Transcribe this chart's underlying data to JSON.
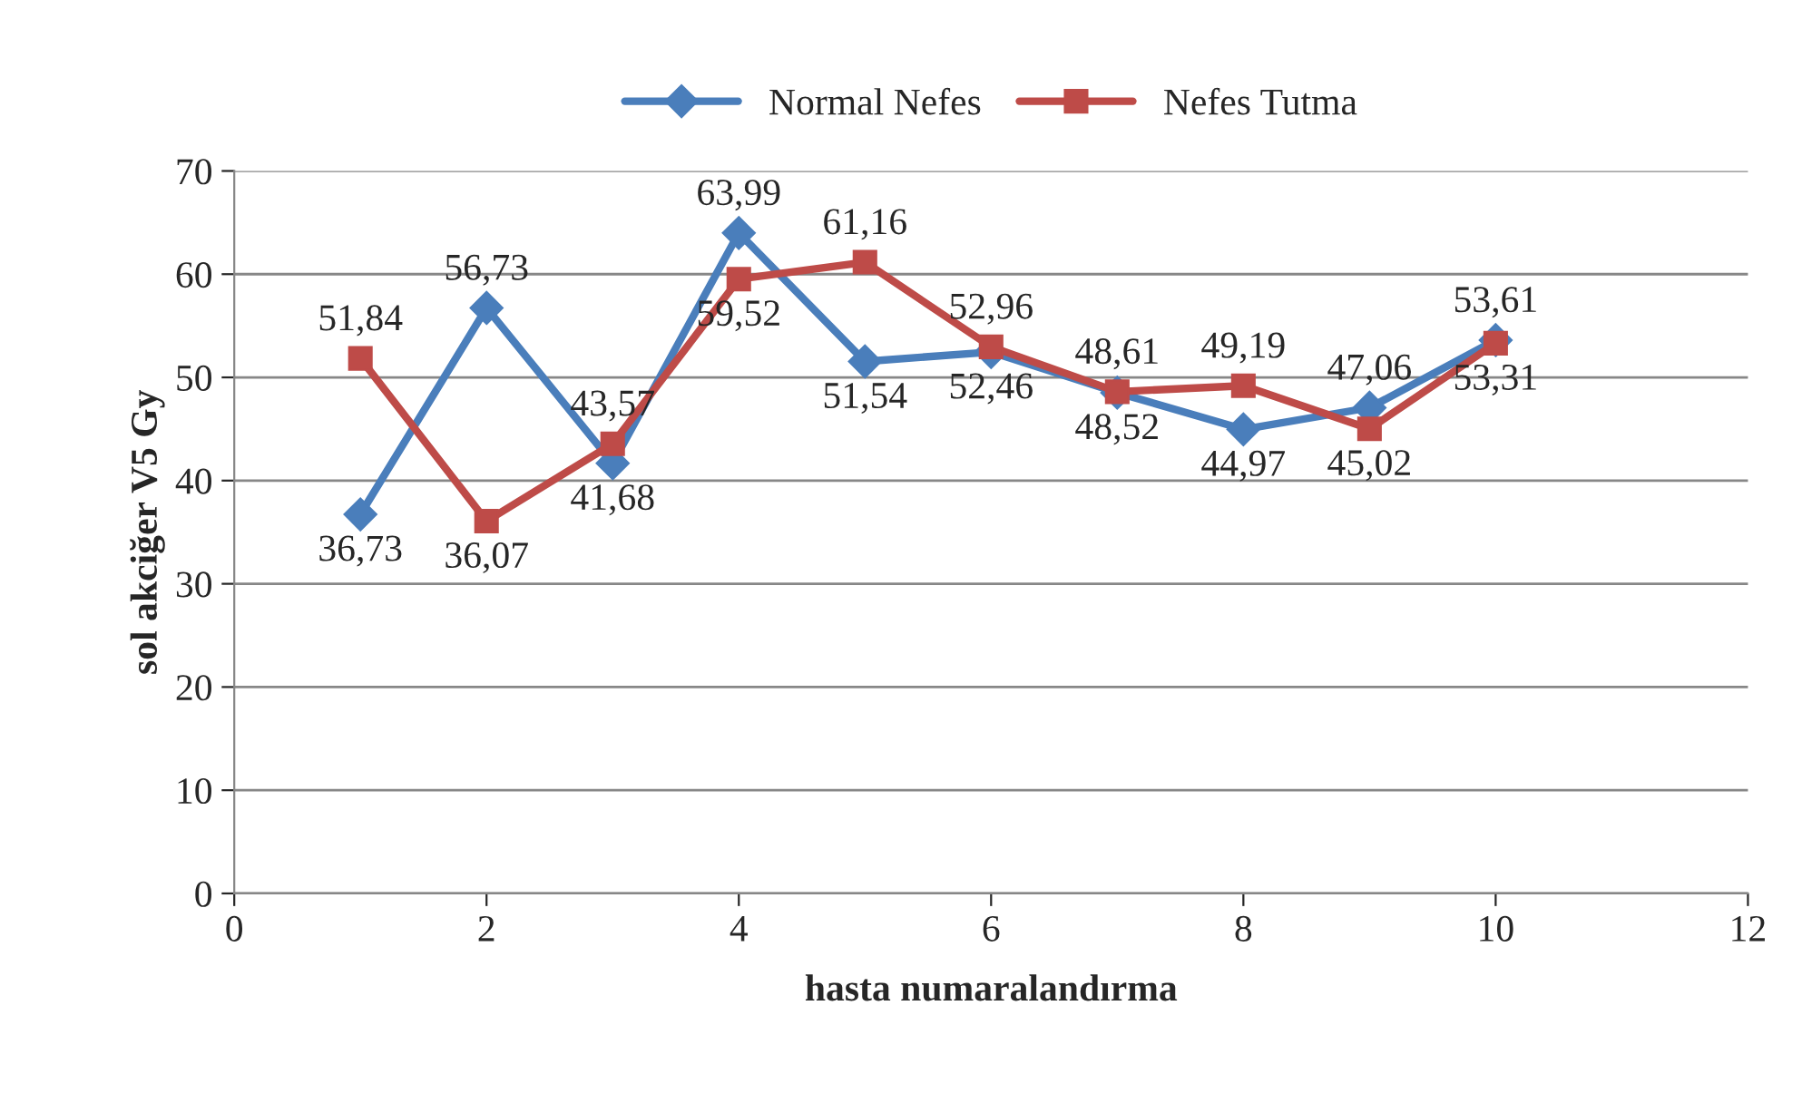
{
  "chart_data": {
    "type": "line",
    "xlabel": "hasta numaralandırma",
    "ylabel": "sol akciğer V5 Gy",
    "x": [
      1,
      2,
      3,
      4,
      5,
      6,
      7,
      8,
      9,
      10
    ],
    "series": [
      {
        "name": "Normal Nefes",
        "color": "#4a7ebb",
        "marker": "diamond",
        "values": [
          36.73,
          56.73,
          41.68,
          63.99,
          51.54,
          52.46,
          48.52,
          44.97,
          47.06,
          53.61
        ],
        "value_labels": [
          "36,73",
          "56,73",
          "41,68",
          "63,99",
          "51,54",
          "52,46",
          "48,52",
          "44,97",
          "47,06",
          "53,61"
        ]
      },
      {
        "name": "Nefes Tutma",
        "color": "#be4b48",
        "marker": "square",
        "values": [
          51.84,
          36.07,
          43.57,
          59.52,
          61.16,
          52.96,
          48.61,
          49.19,
          45.02,
          53.31
        ],
        "value_labels": [
          "51,84",
          "36,07",
          "43,57",
          "59,52",
          "61,16",
          "52,96",
          "48,61",
          "49,19",
          "45,02",
          "53,31"
        ]
      }
    ],
    "xlim": [
      0,
      12
    ],
    "xticks": [
      0,
      2,
      4,
      6,
      8,
      10,
      12
    ],
    "ylim": [
      0,
      70
    ],
    "yticks": [
      0,
      10,
      20,
      30,
      40,
      50,
      60,
      70
    ],
    "grid": "y",
    "legend": "top",
    "line_style": "solid"
  }
}
